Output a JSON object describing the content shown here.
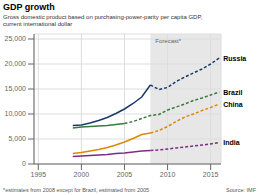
{
  "chart_data": {
    "type": "line",
    "title": "GDP growth",
    "subtitle": "Gross domestic product based on purchasing-power-parity per capita GDP,\ncurrent international dollar",
    "footnote": "*estimates from 2008 except for Brazil, estimated from 2005",
    "source": "Source: IMF",
    "forecast": {
      "start": 2008,
      "label": "Forecast*",
      "color": "#dddddd"
    },
    "x": [
      1999,
      2000,
      2001,
      2002,
      2003,
      2004,
      2005,
      2006,
      2007,
      2008,
      2009,
      2010,
      2011,
      2012,
      2013,
      2014,
      2015,
      2016
    ],
    "xlim": [
      1994.5,
      2016.2
    ],
    "xticks": [
      1995,
      2000,
      2005,
      2010,
      2015
    ],
    "ylim": [
      0,
      26000
    ],
    "yticks": [
      0,
      {
        "value": 5000,
        "label": "5,000"
      },
      {
        "value": 10000,
        "label": "10,000"
      },
      {
        "value": 15000,
        "label": "15,000"
      },
      {
        "value": 20000,
        "label": "20,000"
      },
      {
        "value": 25000,
        "label": "25,000"
      }
    ],
    "grid": true,
    "series": [
      {
        "name": "Russia",
        "color": "#1a3a6b",
        "line_style": "solid",
        "values": [
          7700,
          7800,
          8200,
          8700,
          9300,
          10100,
          11000,
          12100,
          13400,
          15800,
          null,
          null,
          null,
          null,
          null,
          null,
          null,
          null
        ],
        "forecast_values": [
          null,
          null,
          null,
          null,
          null,
          null,
          null,
          null,
          null,
          15800,
          14900,
          15300,
          16500,
          17400,
          18200,
          19000,
          20000,
          21200
        ]
      },
      {
        "name": "Brazil",
        "color": "#3a7a3a",
        "line_style": "solid",
        "values": [
          7200,
          7400,
          7500,
          7600,
          7700,
          7900,
          8100,
          null,
          null,
          null,
          null,
          null,
          null,
          null,
          null,
          null,
          null,
          null
        ],
        "forecast_values": [
          null,
          null,
          null,
          null,
          null,
          null,
          8100,
          8500,
          9100,
          9700,
          9900,
          10800,
          11400,
          12000,
          12700,
          13200,
          13800,
          14400
        ]
      },
      {
        "name": "China",
        "color": "#dd8800",
        "line_style": "solid",
        "values": [
          2100,
          2300,
          2600,
          2900,
          3300,
          3800,
          4400,
          5100,
          5900,
          6200,
          null,
          null,
          null,
          null,
          null,
          null,
          null,
          null
        ],
        "forecast_values": [
          null,
          null,
          null,
          null,
          null,
          null,
          null,
          null,
          null,
          6200,
          6700,
          7500,
          8500,
          9400,
          10000,
          10700,
          11300,
          12000
        ]
      },
      {
        "name": "India",
        "color": "#7b2d82",
        "line_style": "solid",
        "values": [
          1500,
          1600,
          1700,
          1800,
          1900,
          2100,
          2200,
          2400,
          2600,
          2700,
          null,
          null,
          null,
          null,
          null,
          null,
          null,
          null
        ],
        "forecast_values": [
          null,
          null,
          null,
          null,
          null,
          null,
          null,
          null,
          null,
          2700,
          2800,
          3000,
          3200,
          3400,
          3600,
          3800,
          4000,
          4300
        ]
      }
    ]
  }
}
